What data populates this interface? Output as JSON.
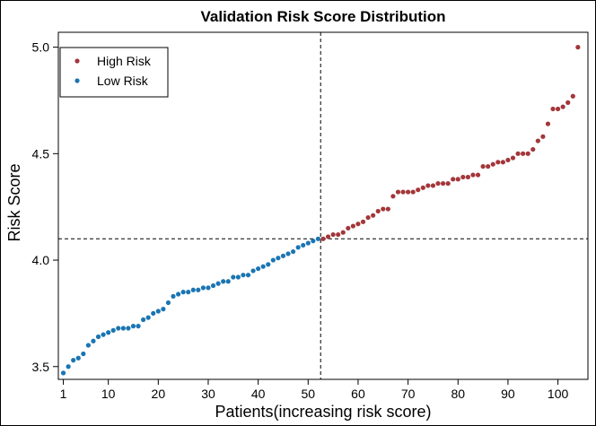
{
  "chart_data": {
    "type": "scatter",
    "title": "Validation Risk Score Distribution",
    "xlabel": "Patients(increasing risk score)",
    "ylabel": "Risk Score",
    "xlim": [
      0,
      106
    ],
    "ylim": [
      3.44,
      5.07
    ],
    "xticks": [
      1,
      10,
      20,
      30,
      40,
      50,
      60,
      70,
      80,
      90,
      100
    ],
    "yticks": [
      "3.5",
      "4.0",
      "4.5",
      "5.0"
    ],
    "cutoff_x": 52.5,
    "cutoff_y": 4.1,
    "legend_position": "top-left",
    "grid": false,
    "series": [
      {
        "name": "High Risk",
        "color": "#a3363a",
        "x": [
          53,
          54,
          55,
          56,
          57,
          58,
          59,
          60,
          61,
          62,
          63,
          64,
          65,
          66,
          67,
          68,
          69,
          70,
          71,
          72,
          73,
          74,
          75,
          76,
          77,
          78,
          79,
          80,
          81,
          82,
          83,
          84,
          85,
          86,
          87,
          88,
          89,
          90,
          91,
          92,
          93,
          94,
          95,
          96,
          97,
          98,
          99,
          100,
          101,
          102,
          103,
          104
        ],
        "y": [
          4.1,
          4.11,
          4.12,
          4.12,
          4.13,
          4.15,
          4.16,
          4.17,
          4.18,
          4.2,
          4.21,
          4.23,
          4.24,
          4.24,
          4.3,
          4.32,
          4.32,
          4.32,
          4.32,
          4.33,
          4.34,
          4.35,
          4.35,
          4.36,
          4.36,
          4.36,
          4.38,
          4.38,
          4.39,
          4.39,
          4.4,
          4.4,
          4.44,
          4.44,
          4.45,
          4.46,
          4.46,
          4.47,
          4.48,
          4.5,
          4.5,
          4.5,
          4.52,
          4.56,
          4.58,
          4.64,
          4.71,
          4.71,
          4.72,
          4.74,
          4.77,
          5.0
        ]
      },
      {
        "name": "Low Risk",
        "color": "#1a75b3",
        "x": [
          1,
          2,
          3,
          4,
          5,
          6,
          7,
          8,
          9,
          10,
          11,
          12,
          13,
          14,
          15,
          16,
          17,
          18,
          19,
          20,
          21,
          22,
          23,
          24,
          25,
          26,
          27,
          28,
          29,
          30,
          31,
          32,
          33,
          34,
          35,
          36,
          37,
          38,
          39,
          40,
          41,
          42,
          43,
          44,
          45,
          46,
          47,
          48,
          49,
          50,
          51,
          52
        ],
        "y": [
          3.47,
          3.5,
          3.53,
          3.54,
          3.56,
          3.6,
          3.62,
          3.64,
          3.65,
          3.66,
          3.67,
          3.68,
          3.68,
          3.68,
          3.69,
          3.69,
          3.72,
          3.73,
          3.75,
          3.76,
          3.77,
          3.8,
          3.83,
          3.84,
          3.85,
          3.85,
          3.86,
          3.86,
          3.87,
          3.87,
          3.88,
          3.89,
          3.9,
          3.9,
          3.92,
          3.92,
          3.93,
          3.93,
          3.95,
          3.96,
          3.97,
          3.98,
          4.0,
          4.01,
          4.02,
          4.03,
          4.04,
          4.06,
          4.07,
          4.08,
          4.09,
          4.1
        ]
      }
    ]
  }
}
